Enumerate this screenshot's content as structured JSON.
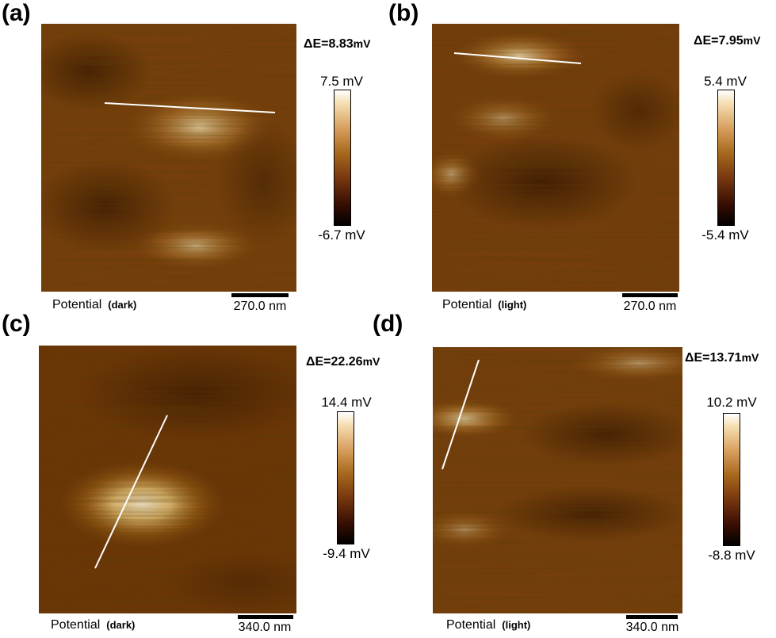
{
  "panels": [
    {
      "label": "(a)",
      "delta": "ΔE=8.83",
      "delta_unit": "mV",
      "cb_max": "7.5 mV",
      "cb_min": "-6.7 mV",
      "caption": "Potential",
      "condition": "(dark)",
      "scale": "270.0 nm"
    },
    {
      "label": "(b)",
      "delta": "ΔE=7.95",
      "delta_unit": "mV",
      "cb_max": "5.4 mV",
      "cb_min": "-5.4 mV",
      "caption": "Potential",
      "condition": "(light)",
      "scale": "270.0 nm"
    },
    {
      "label": "(c)",
      "delta": "ΔE=22.26",
      "delta_unit": "mV",
      "cb_max": "14.4 mV",
      "cb_min": "-9.4 mV",
      "caption": "Potential",
      "condition": "(dark)",
      "scale": "340.0 nm"
    },
    {
      "label": "(d)",
      "delta": "ΔE=13.71",
      "delta_unit": "mV",
      "cb_max": "10.2 mV",
      "cb_min": "-8.8 mV",
      "caption": "Potential",
      "condition": "(light)",
      "scale": "340.0 nm"
    }
  ],
  "colors": {
    "colorbar_high": "#ffffff",
    "colorbar_mid": "#a96a1e",
    "colorbar_low": "#000000",
    "line_profile": "#ffffff"
  }
}
